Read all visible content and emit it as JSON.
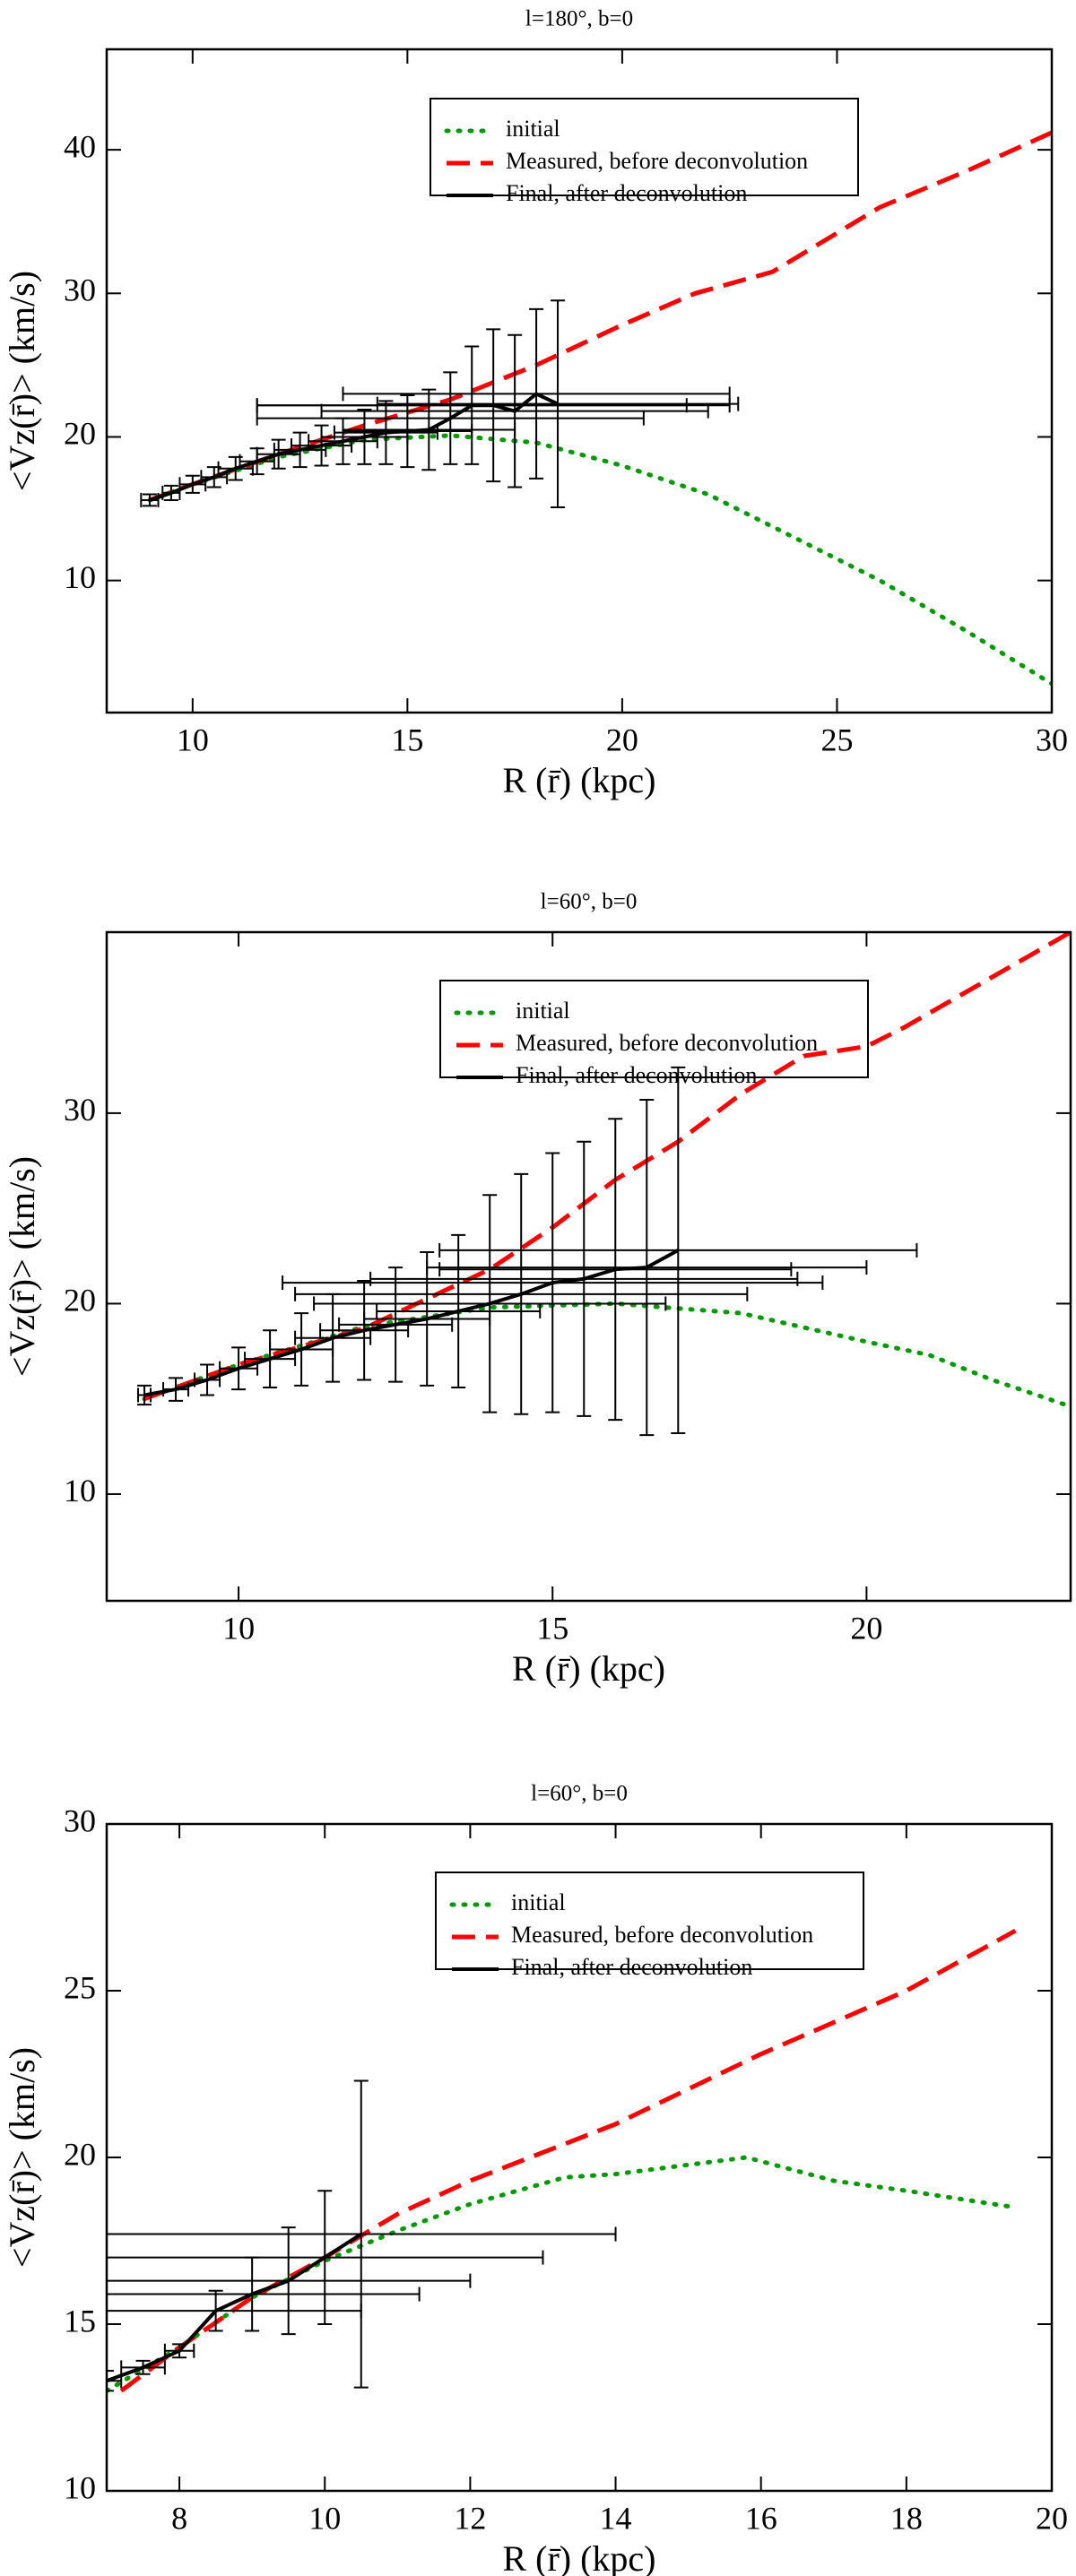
{
  "chart_data": [
    {
      "type": "line",
      "title": "l=180°, b=0",
      "xlabel": "R (r̄) (kpc)",
      "ylabel": "<Vz(r̄)> (km/s)",
      "xlim": [
        8,
        30
      ],
      "ylim": [
        0.8,
        47
      ],
      "xticks": [
        10,
        15,
        20,
        25,
        30
      ],
      "yticks": [
        10,
        20,
        30,
        40
      ],
      "series": [
        {
          "name": "initial",
          "color": "#009900",
          "style": "dotted",
          "x": [
            9,
            10,
            12,
            14,
            16,
            18,
            20,
            22,
            24,
            26,
            28,
            30
          ],
          "values": [
            15.6,
            16.7,
            18.6,
            19.8,
            20.1,
            19.6,
            18,
            16,
            13,
            10,
            6.5,
            2.8
          ]
        },
        {
          "name": "Measured, before deconvolution",
          "color": "#ff0000",
          "style": "dashed",
          "x": [
            9,
            10,
            12,
            14,
            16,
            18,
            20,
            21.7,
            23.5,
            26,
            28,
            30
          ],
          "values": [
            15.6,
            16.7,
            18.8,
            20.8,
            22.6,
            25,
            27.8,
            30,
            31.5,
            36,
            38.5,
            41.2
          ]
        },
        {
          "name": "Final, after deconvolution",
          "color": "#000000",
          "style": "solid",
          "x": [
            9,
            9.5,
            10,
            10.5,
            11,
            11.5,
            12,
            12.5,
            13,
            13.5,
            14,
            14.5,
            15,
            15.5,
            16,
            16.5,
            17,
            17.5,
            18,
            18.5
          ],
          "values": [
            15.6,
            16.1,
            16.7,
            17.2,
            17.8,
            18.3,
            18.8,
            19.1,
            19.4,
            19.7,
            20,
            20.3,
            20.4,
            20.5,
            21.3,
            22.2,
            22.2,
            21.8,
            23,
            22.3
          ],
          "xerr": [
            0.2,
            0.2,
            0.3,
            0.3,
            0.4,
            0.4,
            0.5,
            0.6,
            0.7,
            0.8,
            1,
            1.2,
            1.5,
            2,
            4.5,
            5,
            5.5,
            4.5,
            4.5,
            4.2
          ],
          "yerr": [
            0.4,
            0.5,
            0.6,
            0.7,
            0.8,
            0.9,
            1,
            1.2,
            1.4,
            1.6,
            1.9,
            2.2,
            2.5,
            2.8,
            3.2,
            4.1,
            5.3,
            5.3,
            5.9,
            7.2
          ]
        }
      ]
    },
    {
      "type": "line",
      "title": "l=60°, b=0",
      "xlabel": "R (r̄) (kpc)",
      "ylabel": "<Vz(r̄)> (km/s)",
      "xlim": [
        7.9,
        23.25
      ],
      "ylim": [
        4.4,
        39.5
      ],
      "xticks": [
        10,
        15,
        20
      ],
      "yticks": [
        10,
        20,
        30
      ],
      "series": [
        {
          "name": "initial",
          "color": "#009900",
          "style": "dotted",
          "x": [
            8.5,
            10,
            12,
            14,
            16,
            18,
            20,
            21,
            22,
            23.25
          ],
          "values": [
            15,
            16.8,
            18.8,
            19.8,
            20,
            19.5,
            18,
            17.3,
            16,
            14.6
          ]
        },
        {
          "name": "Measured, before deconvolution",
          "color": "#ff0000",
          "style": "dashed",
          "x": [
            8.5,
            10,
            12,
            14,
            15,
            16,
            17,
            18,
            19,
            20,
            20.6,
            23.25
          ],
          "values": [
            15,
            16.8,
            18.7,
            21.8,
            24,
            26.5,
            28.5,
            31,
            33,
            33.5,
            34.5,
            39.5
          ]
        },
        {
          "name": "Final, after deconvolution",
          "color": "#000000",
          "style": "solid",
          "x": [
            8.5,
            9,
            9.5,
            10,
            10.5,
            11,
            11.5,
            12,
            12.5,
            13,
            13.5,
            14,
            14.5,
            15,
            15.5,
            16,
            16.5,
            17
          ],
          "values": [
            15.2,
            15.5,
            16,
            16.6,
            17.1,
            17.6,
            18.2,
            18.6,
            18.9,
            19.2,
            19.6,
            20,
            20.5,
            21.1,
            21.3,
            21.8,
            21.9,
            22.8
          ],
          "xerr": [
            0.1,
            0.2,
            0.2,
            0.3,
            0.4,
            0.5,
            0.6,
            0.7,
            0.9,
            1,
            1.3,
            2.8,
            3.6,
            4.3,
            3.4,
            2.8,
            3.5,
            3.8
          ],
          "yerr": [
            0.5,
            0.6,
            0.8,
            1.1,
            1.5,
            1.9,
            2.3,
            2.6,
            3,
            3.5,
            4,
            5.7,
            6.3,
            6.8,
            7.2,
            7.9,
            8.8,
            9.6
          ]
        }
      ]
    },
    {
      "type": "line",
      "title": "l=60°, b=0",
      "xlabel": "R (r̄) (kpc)",
      "ylabel": "<Vz(r̄)> (km/s)",
      "xlim": [
        7,
        20
      ],
      "ylim": [
        10,
        30
      ],
      "xticks": [
        8,
        10,
        12,
        14,
        16,
        18,
        20
      ],
      "yticks": [
        10,
        15,
        20,
        25,
        30
      ],
      "series": [
        {
          "name": "initial",
          "color": "#009900",
          "style": "dotted",
          "x": [
            7,
            8,
            9,
            10,
            11,
            12,
            13.3,
            14,
            15.8,
            17,
            18,
            19.5
          ],
          "values": [
            13,
            14.3,
            15.8,
            16.9,
            17.8,
            18.6,
            19.4,
            19.5,
            20,
            19.3,
            19,
            18.5
          ]
        },
        {
          "name": "Measured, before deconvolution",
          "color": "#ff0000",
          "style": "dashed",
          "x": [
            7.2,
            8,
            9,
            10,
            11,
            12,
            14,
            16,
            18,
            19.5
          ],
          "values": [
            13,
            14.3,
            15.8,
            17,
            18.3,
            19.3,
            21,
            23.1,
            25,
            26.8
          ]
        },
        {
          "name": "Final, after deconvolution",
          "color": "#000000",
          "style": "solid",
          "x": [
            7,
            7.5,
            8,
            8.5,
            9,
            9.5,
            10,
            10.5
          ],
          "values": [
            13.3,
            13.7,
            14.2,
            15.4,
            15.9,
            16.3,
            17,
            17.7
          ],
          "xerr": [
            0.2,
            0.3,
            0.2,
            2,
            2.3,
            2.5,
            3,
            3.5
          ],
          "yerr": [
            0.3,
            0.2,
            0.2,
            0.6,
            1.1,
            1.6,
            2,
            4.6
          ]
        }
      ]
    }
  ]
}
